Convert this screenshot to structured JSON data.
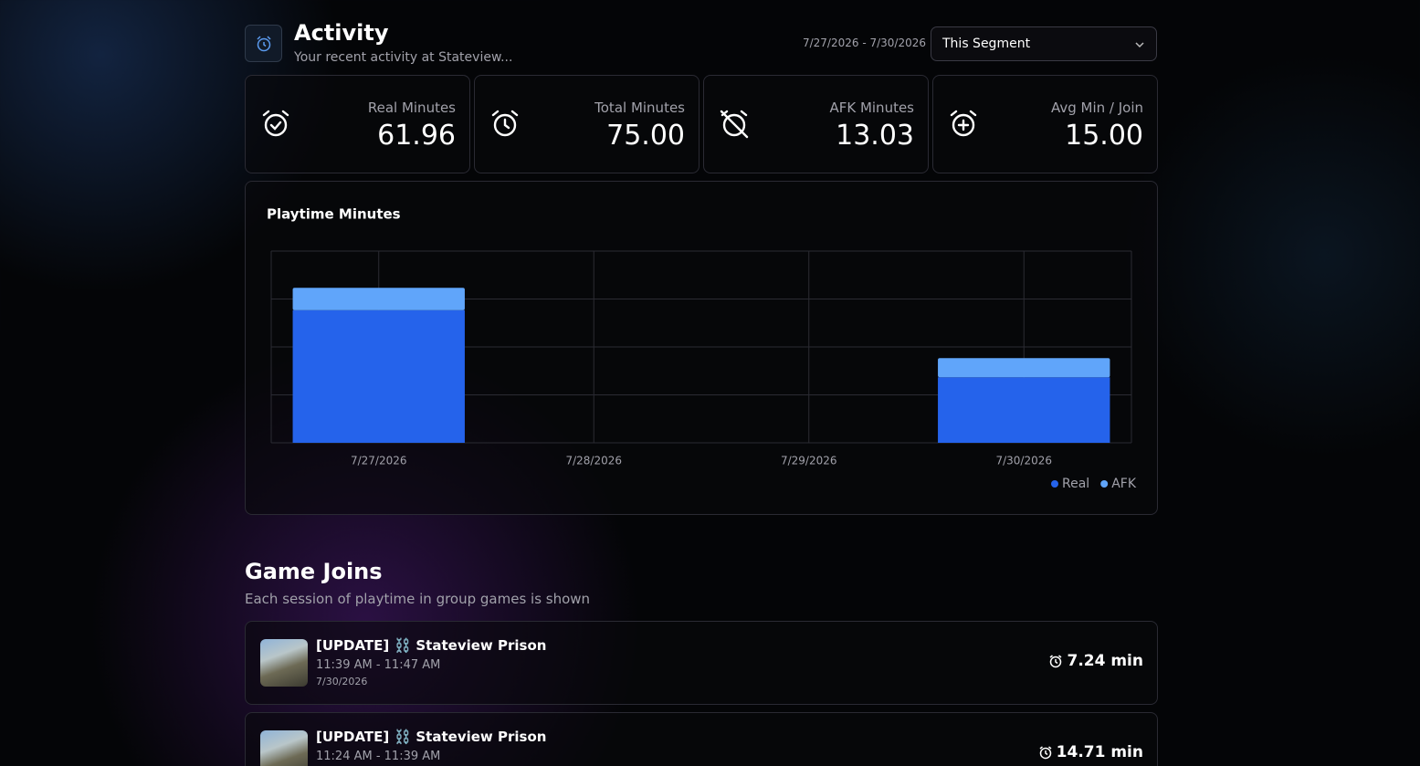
{
  "header": {
    "title": "Activity",
    "subtitle": "Your recent activity at Stateview...",
    "date_range": "7/27/2026 - 7/30/2026",
    "segment": "This Segment"
  },
  "stats": [
    {
      "label": "Real Minutes",
      "value": "61.96"
    },
    {
      "label": "Total Minutes",
      "value": "75.00"
    },
    {
      "label": "AFK Minutes",
      "value": "13.03"
    },
    {
      "label": "Avg Min / Join",
      "value": "15.00"
    }
  ],
  "chart_data": {
    "type": "bar",
    "stacked": true,
    "title": "Playtime Minutes",
    "categories": [
      "7/27/2026",
      "7/28/2026",
      "7/29/2026",
      "7/30/2026"
    ],
    "series": [
      {
        "name": "Real",
        "color": "#2563eb",
        "values": [
          41.5,
          0,
          0,
          20.5
        ]
      },
      {
        "name": "AFK",
        "color": "#60a5fa",
        "values": [
          7.0,
          0,
          0,
          6.0
        ]
      }
    ],
    "ylim": [
      0,
      60
    ],
    "grid": true,
    "legend": "bottom-right"
  },
  "game_joins": {
    "title": "Game Joins",
    "subtitle": "Each session of playtime in group games is shown",
    "sessions": [
      {
        "name": "[UPDATE] ⛓️ Stateview Prison",
        "time": "11:39 AM - 11:47 AM",
        "date": "7/30/2026",
        "duration": "7.24 min"
      },
      {
        "name": "[UPDATE] ⛓️ Stateview Prison",
        "time": "11:24 AM - 11:39 AM",
        "duration": "14.71 min"
      }
    ]
  }
}
